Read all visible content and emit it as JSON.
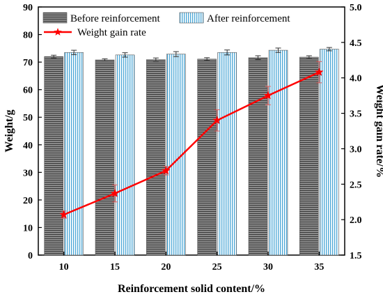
{
  "chart_data": {
    "type": "bar",
    "xlabel": "Reinforcement solid content/%",
    "ylabel": "Weight/g",
    "y2label": "Weight gain rate/%",
    "categories": [
      "10",
      "15",
      "20",
      "25",
      "30",
      "35"
    ],
    "ylim": [
      0,
      90
    ],
    "yticks": [
      "0",
      "10",
      "20",
      "30",
      "40",
      "50",
      "60",
      "70",
      "80",
      "90"
    ],
    "y2lim": [
      1.5,
      5.0
    ],
    "y2ticks": [
      "1.5",
      "2.0",
      "2.5",
      "3.0",
      "3.5",
      "4.0",
      "4.5",
      "5.0"
    ],
    "series": [
      {
        "name": "Before reinforcement",
        "kind": "bar",
        "color": "#6f6f6f",
        "values": [
          72.0,
          70.8,
          70.9,
          71.1,
          71.6,
          71.8
        ],
        "errors": [
          0.5,
          0.4,
          0.6,
          0.5,
          0.7,
          0.5
        ]
      },
      {
        "name": "After reinforcement",
        "kind": "bar",
        "color": "#8fd0ea",
        "values": [
          73.5,
          72.6,
          72.9,
          73.5,
          74.3,
          74.7
        ],
        "errors": [
          0.8,
          0.8,
          0.9,
          0.9,
          0.8,
          0.6
        ]
      },
      {
        "name": "Weight gain rate",
        "kind": "line",
        "axis": "right",
        "color": "#ff0000",
        "values": [
          2.07,
          2.37,
          2.69,
          3.4,
          3.75,
          4.08
        ],
        "errors": [
          0.05,
          0.12,
          0.06,
          0.15,
          0.13,
          0.15
        ]
      }
    ],
    "legend": "top"
  }
}
